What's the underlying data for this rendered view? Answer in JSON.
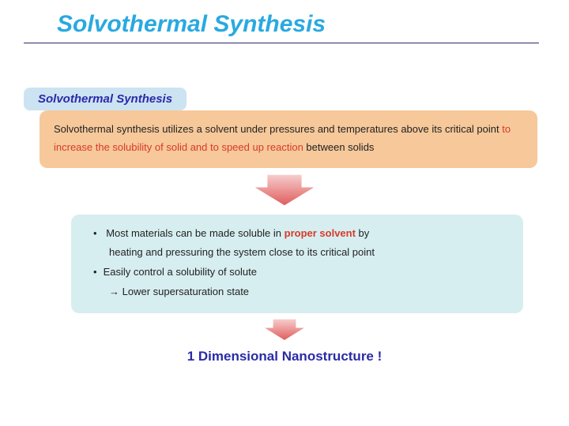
{
  "colors": {
    "title": "#29a9e0",
    "hr": "#2a2a6a",
    "sub_header_bg": "#cce3f2",
    "sub_header_text": "#2b2aa8",
    "defn_bg": "#f6c89a",
    "highlight_red": "#d83a2a",
    "bullets_bg": "#d7eef0",
    "conclusion_text": "#2b2aa8",
    "arrow_fill_top": "#f7cfcf",
    "arrow_fill_bottom": "#e05a5a",
    "arrow_stroke": "#ffffff"
  },
  "title": "Solvothermal Synthesis",
  "sub_header": "Solvothermal Synthesis",
  "definition": {
    "pre": "Solvothermal synthesis utilizes a solvent under pressures and temperatures above its critical point ",
    "highlight": "to increase the solubility of solid and to speed up reaction",
    "post": " between solids"
  },
  "bullets": {
    "line1_pre": "Most materials can be made soluble in ",
    "line1_hl": "proper solvent",
    "line1_post": " by",
    "line1b": "heating and pressuring the system close to its critical point",
    "line2": "Easily control a solubility of solute",
    "line2b": "→ Lower supersaturation state"
  },
  "conclusion": "1 Dimensional Nanostructure !",
  "arrow": {
    "large": {
      "width": 90,
      "height": 44
    },
    "small": {
      "width": 60,
      "height": 30
    }
  },
  "typography": {
    "title_fontsize": 30,
    "sub_header_fontsize": 15,
    "body_fontsize": 13,
    "conclusion_fontsize": 17
  }
}
